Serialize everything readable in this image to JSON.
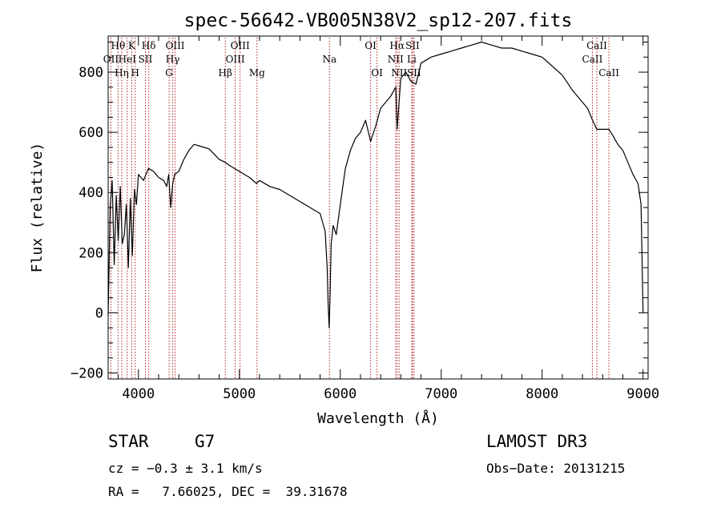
{
  "chart_data": {
    "type": "line",
    "title": "spec-56642-VB005N38V2_sp12-207.fits",
    "xlabel": "Wavelength (Å)",
    "ylabel": "Flux (relative)",
    "xlim": [
      3700,
      9050
    ],
    "ylim": [
      -220,
      920
    ],
    "x_ticks": [
      {
        "value": 4000,
        "label": "4000"
      },
      {
        "value": 5000,
        "label": "5000"
      },
      {
        "value": 6000,
        "label": "6000"
      },
      {
        "value": 7000,
        "label": "7000"
      },
      {
        "value": 8000,
        "label": "8000"
      },
      {
        "value": 9000,
        "label": "9000"
      }
    ],
    "y_ticks": [
      {
        "value": -200,
        "label": "−200"
      },
      {
        "value": 0,
        "label": "0"
      },
      {
        "value": 200,
        "label": "200"
      },
      {
        "value": 400,
        "label": "400"
      },
      {
        "value": 600,
        "label": "600"
      },
      {
        "value": 800,
        "label": "800"
      }
    ],
    "grid": false,
    "line_color": "#000000",
    "marker_color": "#b22222",
    "spectrum": {
      "x": [
        3700,
        3720,
        3740,
        3760,
        3780,
        3800,
        3820,
        3840,
        3860,
        3880,
        3900,
        3920,
        3940,
        3960,
        3980,
        4000,
        4050,
        4100,
        4150,
        4200,
        4250,
        4280,
        4300,
        4320,
        4340,
        4360,
        4400,
        4450,
        4500,
        4550,
        4600,
        4700,
        4800,
        4861,
        4900,
        5000,
        5100,
        5170,
        5200,
        5300,
        5400,
        5500,
        5600,
        5700,
        5800,
        5850,
        5870,
        5880,
        5890,
        5900,
        5910,
        5930,
        5960,
        6000,
        6050,
        6100,
        6150,
        6200,
        6250,
        6300,
        6350,
        6400,
        6450,
        6500,
        6550,
        6563,
        6600,
        6650,
        6700,
        6750,
        6800,
        6900,
        7000,
        7100,
        7200,
        7300,
        7400,
        7500,
        7600,
        7700,
        7800,
        7900,
        8000,
        8100,
        8200,
        8300,
        8400,
        8450,
        8500,
        8542,
        8600,
        8662,
        8700,
        8750,
        8800,
        8850,
        8900,
        8950,
        8980,
        9000
      ],
      "y": [
        -10,
        350,
        440,
        160,
        390,
        240,
        420,
        230,
        260,
        360,
        150,
        380,
        190,
        410,
        360,
        460,
        440,
        480,
        470,
        450,
        440,
        420,
        460,
        350,
        430,
        460,
        470,
        510,
        540,
        560,
        555,
        545,
        510,
        500,
        490,
        470,
        450,
        430,
        440,
        420,
        410,
        390,
        370,
        350,
        330,
        270,
        150,
        30,
        -50,
        80,
        230,
        290,
        260,
        360,
        480,
        540,
        580,
        600,
        640,
        570,
        620,
        680,
        700,
        720,
        750,
        610,
        780,
        800,
        770,
        760,
        830,
        850,
        860,
        870,
        880,
        890,
        900,
        890,
        880,
        880,
        870,
        860,
        850,
        820,
        790,
        740,
        700,
        680,
        640,
        610,
        610,
        610,
        590,
        560,
        540,
        500,
        460,
        430,
        360,
        0
      ]
    },
    "lines": [
      {
        "label": "Hθ",
        "x": 3798,
        "row": 1
      },
      {
        "label": "OII",
        "x": 3727,
        "row": 2
      },
      {
        "label": "Hη",
        "x": 3835,
        "row": 3
      },
      {
        "label": "K",
        "x": 3934,
        "row": 1
      },
      {
        "label": "HeI",
        "x": 3889,
        "row": 2
      },
      {
        "label": "H",
        "x": 3968,
        "row": 3
      },
      {
        "label": "Hδ",
        "x": 4102,
        "row": 1
      },
      {
        "label": "SII",
        "x": 4069,
        "row": 2
      },
      {
        "label": "OIII",
        "x": 4363,
        "row": 1
      },
      {
        "label": "Hγ",
        "x": 4340,
        "row": 2
      },
      {
        "label": "G",
        "x": 4304,
        "row": 3
      },
      {
        "label": "OIII",
        "x": 5007,
        "row": 1
      },
      {
        "label": "OIII",
        "x": 4959,
        "row": 2
      },
      {
        "label": "Hβ",
        "x": 4861,
        "row": 3
      },
      {
        "label": "Mg",
        "x": 5175,
        "row": 3
      },
      {
        "label": "Na",
        "x": 5893,
        "row": 2
      },
      {
        "label": "OI",
        "x": 6300,
        "row": 1
      },
      {
        "label": "OI",
        "x": 6364,
        "row": 3
      },
      {
        "label": "Hα",
        "x": 6563,
        "row": 1
      },
      {
        "label": "SII",
        "x": 6716,
        "row": 1
      },
      {
        "label": "NII",
        "x": 6548,
        "row": 2
      },
      {
        "label": "Li",
        "x": 6708,
        "row": 2
      },
      {
        "label": "NII",
        "x": 6583,
        "row": 3
      },
      {
        "label": "SII",
        "x": 6731,
        "row": 3
      },
      {
        "label": "CaII",
        "x": 8542,
        "row": 1
      },
      {
        "label": "CaII",
        "x": 8498,
        "row": 2
      },
      {
        "label": "CaII",
        "x": 8662,
        "row": 3
      }
    ]
  },
  "info": {
    "object_class": "STAR",
    "subclass": "G7",
    "cz": "cz = −0.3 ± 3.1 km/s",
    "coords": "RA =   7.66025, DEC =  39.31678",
    "survey": "LAMOST DR3",
    "obs_date": "Obs−Date: 20131215"
  }
}
